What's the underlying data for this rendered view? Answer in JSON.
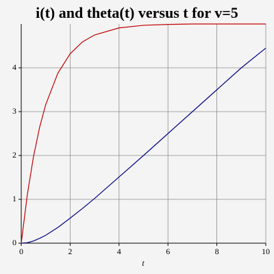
{
  "chart_data": {
    "type": "line",
    "title": "i(t) and theta(t) versus t for v=5",
    "x_label": "t",
    "x": [
      0,
      0.25,
      0.5,
      0.75,
      1,
      1.5,
      2,
      2.5,
      3,
      4,
      5,
      6,
      7,
      8,
      9,
      10
    ],
    "series": [
      {
        "color": "#c00000",
        "values": [
          0,
          1.11,
          1.97,
          2.64,
          3.16,
          3.88,
          4.32,
          4.59,
          4.75,
          4.91,
          4.97,
          4.99,
          5.0,
          5.0,
          5.0,
          5.0
        ]
      },
      {
        "color": "#000080",
        "values": [
          0,
          0.01,
          0.05,
          0.11,
          0.18,
          0.36,
          0.57,
          0.79,
          1.02,
          1.51,
          2.0,
          2.5,
          3.0,
          3.5,
          4.0,
          4.45
        ]
      }
    ],
    "xlim": [
      0,
      10
    ],
    "xticks": [
      0,
      2,
      4,
      6,
      8,
      10
    ],
    "ylim": [
      0,
      5
    ],
    "yticks": [
      0,
      1,
      2,
      3,
      4
    ],
    "grid": true
  }
}
